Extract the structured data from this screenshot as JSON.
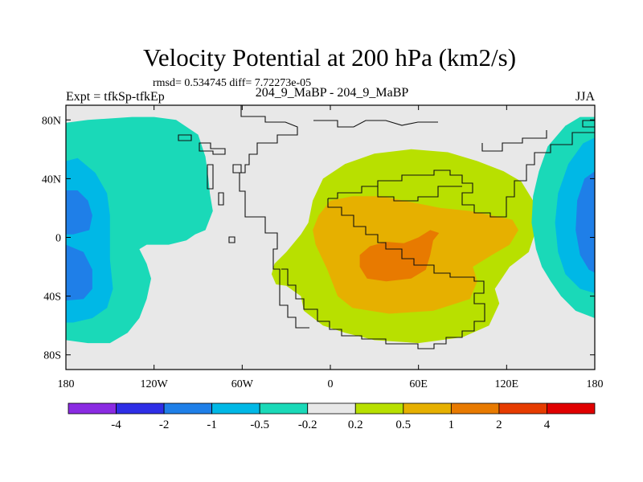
{
  "chart_data": {
    "type": "heatmap",
    "title": "Velocity Potential at 200 hPa (km2/s)",
    "stats": "rmsd= 0.534745 diff= 7.72273e-05",
    "left_label": "Expt = tfkSp-tfkEp",
    "center_label": "204_9_MaBP - 204_9_MaBP",
    "season": "JJA",
    "projection": "cylindrical equidistant",
    "xlim": [
      -180,
      180
    ],
    "ylim": [
      -90,
      90
    ],
    "x_ticks": [
      {
        "value": -180,
        "label": "180"
      },
      {
        "value": -120,
        "label": "120W"
      },
      {
        "value": -60,
        "label": "60W"
      },
      {
        "value": 0,
        "label": "0"
      },
      {
        "value": 60,
        "label": "60E"
      },
      {
        "value": 120,
        "label": "120E"
      },
      {
        "value": 180,
        "label": "180"
      }
    ],
    "y_ticks": [
      {
        "value": 80,
        "label": "80N"
      },
      {
        "value": 40,
        "label": "40N"
      },
      {
        "value": 0,
        "label": "0"
      },
      {
        "value": -40,
        "label": "40S"
      },
      {
        "value": -80,
        "label": "80S"
      }
    ],
    "contour_levels": [
      {
        "value": -4,
        "label": "-4"
      },
      {
        "value": -2,
        "label": "-2"
      },
      {
        "value": -1,
        "label": "-1"
      },
      {
        "value": -0.5,
        "label": "-0.5"
      },
      {
        "value": -0.2,
        "label": "-0.2"
      },
      {
        "value": 0.2,
        "label": "0.2"
      },
      {
        "value": 0.5,
        "label": "0.5"
      },
      {
        "value": 1,
        "label": "1"
      },
      {
        "value": 2,
        "label": "2"
      },
      {
        "value": 4,
        "label": "4"
      }
    ],
    "colors": [
      "#8a2be2",
      "#2e2ee6",
      "#1f7fe8",
      "#00b8e6",
      "#1ad9b8",
      "#e8e8e8",
      "#b8e000",
      "#e6b000",
      "#e87a00",
      "#e63c00",
      "#e00000"
    ],
    "field_regions": [
      {
        "name": "positive-lobe-africa",
        "polygons": [
          {
            "level": 0.2,
            "points": [
              [
                -40,
                -25
              ],
              [
                -37,
                -32
              ],
              [
                -30,
                -33
              ],
              [
                -20,
                -40
              ],
              [
                -18,
                -50
              ],
              [
                -5,
                -60
              ],
              [
                10,
                -65
              ],
              [
                30,
                -70
              ],
              [
                60,
                -72
              ],
              [
                90,
                -68
              ],
              [
                108,
                -60
              ],
              [
                115,
                -45
              ],
              [
                112,
                -35
              ],
              [
                122,
                -20
              ],
              [
                135,
                -10
              ],
              [
                140,
                5
              ],
              [
                138,
                25
              ],
              [
                130,
                38
              ],
              [
                118,
                45
              ],
              [
                100,
                52
              ],
              [
                80,
                58
              ],
              [
                55,
                60
              ],
              [
                30,
                57
              ],
              [
                10,
                50
              ],
              [
                -5,
                40
              ],
              [
                -12,
                25
              ],
              [
                -15,
                10
              ],
              [
                -20,
                2
              ],
              [
                -30,
                -10
              ],
              [
                -38,
                -18
              ]
            ]
          },
          {
            "level": 0.5,
            "points": [
              [
                -10,
                -5
              ],
              [
                -2,
                -22
              ],
              [
                5,
                -40
              ],
              [
                15,
                -48
              ],
              [
                40,
                -52
              ],
              [
                70,
                -50
              ],
              [
                95,
                -42
              ],
              [
                100,
                -30
              ],
              [
                97,
                -20
              ],
              [
                110,
                -12
              ],
              [
                122,
                -5
              ],
              [
                128,
                5
              ],
              [
                124,
                12
              ],
              [
                110,
                15
              ],
              [
                95,
                18
              ],
              [
                75,
                20
              ],
              [
                55,
                24
              ],
              [
                35,
                28
              ],
              [
                15,
                28
              ],
              [
                0,
                25
              ],
              [
                -8,
                15
              ],
              [
                -12,
                5
              ]
            ]
          },
          {
            "level": 1,
            "points": [
              [
                20,
                -20
              ],
              [
                25,
                -28
              ],
              [
                38,
                -30
              ],
              [
                55,
                -28
              ],
              [
                65,
                -22
              ],
              [
                68,
                -12
              ],
              [
                70,
                -2
              ],
              [
                74,
                3
              ],
              [
                68,
                5
              ],
              [
                60,
                0
              ],
              [
                50,
                -4
              ],
              [
                38,
                -3
              ],
              [
                27,
                -6
              ],
              [
                20,
                -12
              ]
            ]
          }
        ]
      },
      {
        "name": "negative-lobe-pacific-west",
        "polygons": [
          {
            "level": -0.2,
            "points": [
              [
                -180,
                78
              ],
              [
                -165,
                80
              ],
              [
                -135,
                82
              ],
              [
                -120,
                82
              ],
              [
                -105,
                80
              ],
              [
                -90,
                70
              ],
              [
                -85,
                55
              ],
              [
                -83,
                40
              ],
              [
                -82,
                30
              ],
              [
                -80,
                18
              ],
              [
                -85,
                5
              ],
              [
                -92,
                2
              ],
              [
                -98,
                -2
              ],
              [
                -110,
                -5
              ],
              [
                -125,
                -5
              ],
              [
                -130,
                -8
              ],
              [
                -125,
                -18
              ],
              [
                -122,
                -28
              ],
              [
                -125,
                -42
              ],
              [
                -130,
                -55
              ],
              [
                -138,
                -65
              ],
              [
                -150,
                -72
              ],
              [
                -165,
                -72
              ],
              [
                -180,
                -70
              ]
            ]
          },
          {
            "level": -0.5,
            "points": [
              [
                -180,
                52
              ],
              [
                -172,
                54
              ],
              [
                -160,
                44
              ],
              [
                -152,
                30
              ],
              [
                -150,
                15
              ],
              [
                -150,
                0
              ],
              [
                -150,
                -15
              ],
              [
                -148,
                -35
              ],
              [
                -152,
                -48
              ],
              [
                -162,
                -55
              ],
              [
                -175,
                -58
              ],
              [
                -180,
                -58
              ]
            ]
          },
          {
            "level": -1,
            "points": [
              [
                -180,
                32
              ],
              [
                -172,
                32
              ],
              [
                -165,
                25
              ],
              [
                -162,
                15
              ],
              [
                -164,
                5
              ],
              [
                -175,
                2
              ],
              [
                -180,
                2
              ]
            ]
          },
          {
            "level": -1,
            "points": [
              [
                -180,
                -5
              ],
              [
                -168,
                -10
              ],
              [
                -162,
                -22
              ],
              [
                -162,
                -35
              ],
              [
                -168,
                -42
              ],
              [
                -180,
                -43
              ]
            ]
          }
        ]
      },
      {
        "name": "negative-lobe-pacific-east",
        "polygons": [
          {
            "level": -0.2,
            "points": [
              [
                180,
                82
              ],
              [
                170,
                82
              ],
              [
                160,
                76
              ],
              [
                148,
                62
              ],
              [
                142,
                45
              ],
              [
                138,
                28
              ],
              [
                137,
                10
              ],
              [
                140,
                -8
              ],
              [
                144,
                -20
              ],
              [
                150,
                -30
              ],
              [
                157,
                -40
              ],
              [
                167,
                -50
              ],
              [
                180,
                -55
              ]
            ]
          },
          {
            "level": -0.5,
            "points": [
              [
                180,
                68
              ],
              [
                172,
                64
              ],
              [
                162,
                50
              ],
              [
                155,
                30
              ],
              [
                153,
                10
              ],
              [
                155,
                -10
              ],
              [
                160,
                -25
              ],
              [
                170,
                -35
              ],
              [
                180,
                -38
              ]
            ]
          },
          {
            "level": -1,
            "points": [
              [
                180,
                45
              ],
              [
                173,
                40
              ],
              [
                168,
                25
              ],
              [
                167,
                5
              ],
              [
                170,
                -12
              ],
              [
                176,
                -22
              ],
              [
                180,
                -24
              ]
            ]
          }
        ]
      }
    ]
  }
}
